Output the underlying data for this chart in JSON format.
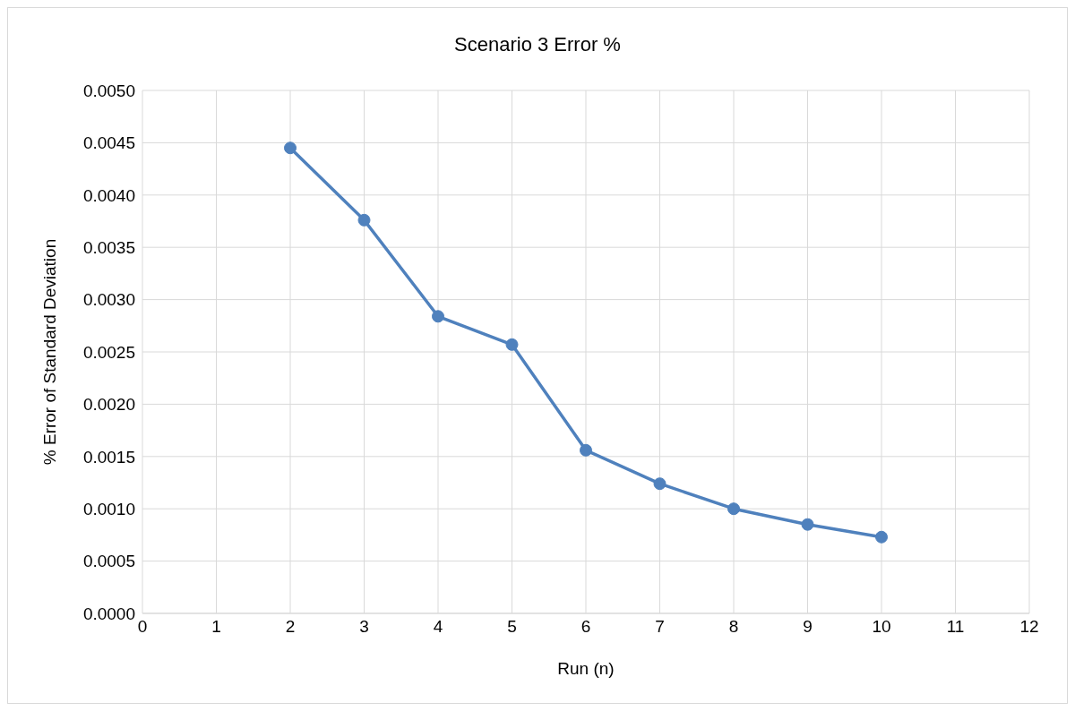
{
  "chart_data": {
    "type": "line",
    "title": "Scenario 3 Error %",
    "xlabel": "Run (n)",
    "ylabel": "% Error of Standard Deviation",
    "x": [
      2,
      3,
      4,
      5,
      6,
      7,
      8,
      9,
      10
    ],
    "series": [
      {
        "color": "#4f81bd",
        "values": [
          0.00445,
          0.00376,
          0.00284,
          0.00257,
          0.00156,
          0.00124,
          0.001,
          0.00085,
          0.00073
        ]
      }
    ],
    "xlim": [
      0,
      12
    ],
    "xticks": [
      0,
      1,
      2,
      3,
      4,
      5,
      6,
      7,
      8,
      9,
      10,
      11,
      12
    ],
    "ylim": [
      0,
      0.005
    ],
    "yticks": [
      {
        "value": 0,
        "label": "0.0000"
      },
      {
        "value": 0.0005,
        "label": "0.0005"
      },
      {
        "value": 0.001,
        "label": "0.0010"
      },
      {
        "value": 0.0015,
        "label": "0.0015"
      },
      {
        "value": 0.002,
        "label": "0.0020"
      },
      {
        "value": 0.0025,
        "label": "0.0025"
      },
      {
        "value": 0.003,
        "label": "0.0030"
      },
      {
        "value": 0.0035,
        "label": "0.0035"
      },
      {
        "value": 0.004,
        "label": "0.0040"
      },
      {
        "value": 0.0045,
        "label": "0.0045"
      },
      {
        "value": 0.005,
        "label": "0.0050"
      }
    ],
    "grid": true,
    "marker": "circle",
    "line_style": "solid",
    "legend": false
  }
}
